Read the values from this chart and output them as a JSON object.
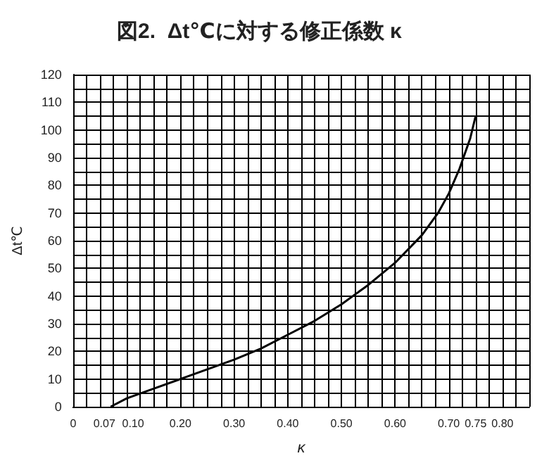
{
  "chart_data": {
    "type": "line",
    "title": "図2.  Δt℃に対する修正係数 κ",
    "xlabel": "κ",
    "ylabel": "Δt℃",
    "series": [
      {
        "color": "#000000",
        "x": [
          0.07,
          0.1,
          0.15,
          0.2,
          0.25,
          0.3,
          0.35,
          0.4,
          0.45,
          0.5,
          0.55,
          0.6,
          0.65,
          0.68,
          0.7,
          0.72,
          0.74,
          0.75
        ],
        "values": [
          0,
          3,
          6.5,
          10,
          13.5,
          17,
          21,
          26,
          31,
          37,
          44,
          52,
          62,
          70,
          77,
          86,
          97,
          105
        ]
      }
    ],
    "xlim": [
      0,
      0.85
    ],
    "ylim": [
      0,
      120
    ],
    "xticks": [
      0,
      {
        "value": 0.07,
        "label": "0.07"
      },
      {
        "value": 0.1,
        "label": "0.10"
      },
      {
        "value": 0.2,
        "label": "0.20"
      },
      {
        "value": 0.3,
        "label": "0.30"
      },
      {
        "value": 0.4,
        "label": "0.40"
      },
      {
        "value": 0.5,
        "label": "0.50"
      },
      {
        "value": 0.6,
        "label": "0.60"
      },
      {
        "value": 0.7,
        "label": "0.70"
      },
      {
        "value": 0.75,
        "label": "0.75"
      },
      {
        "value": 0.8,
        "label": "0.80"
      }
    ],
    "yticks": [
      0,
      10,
      20,
      30,
      40,
      50,
      60,
      70,
      80,
      90,
      100,
      110,
      120
    ],
    "grid": true,
    "marker": "none",
    "line_style": "solid"
  }
}
